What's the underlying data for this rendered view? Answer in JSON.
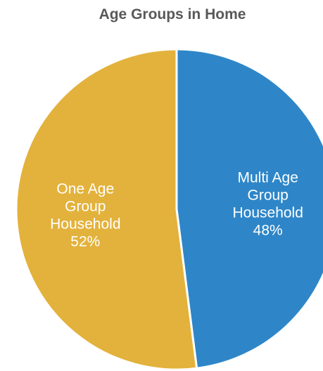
{
  "chart_data": {
    "type": "pie",
    "title": "Age Groups in Home",
    "slices": [
      {
        "label_lines": [
          "Multi Age",
          "Group",
          "Household",
          "48%"
        ],
        "category": "Multi Age Group Household",
        "value": 48,
        "color": "#2e86c8"
      },
      {
        "label_lines": [
          "One Age",
          "Group",
          "Household",
          "52%"
        ],
        "category": "One Age Group Household",
        "value": 52,
        "color": "#e3b23c"
      }
    ],
    "start_angle_deg": 0,
    "direction": "clockwise",
    "legend": "none"
  }
}
